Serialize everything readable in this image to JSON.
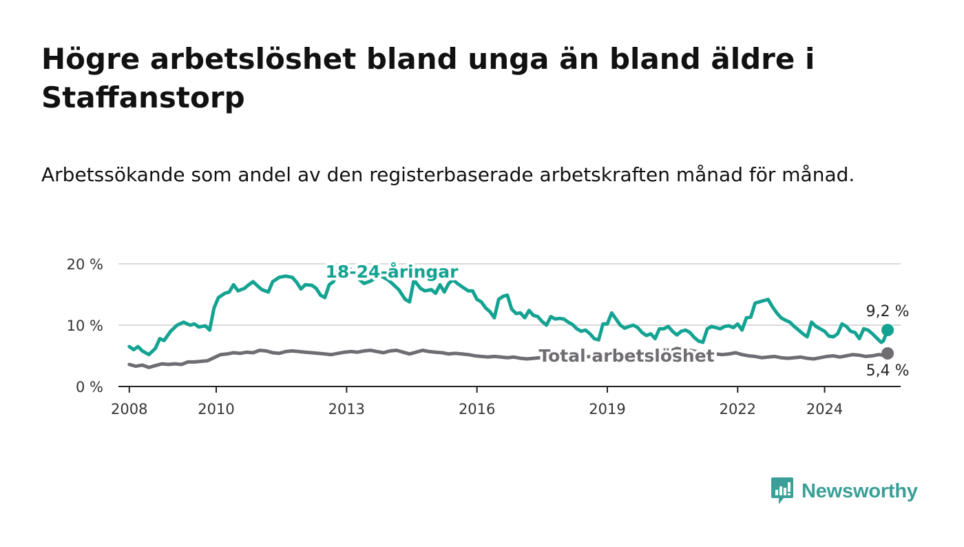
{
  "title": "Högre arbetslöshet bland unga än bland äldre i Staffanstorp",
  "subtitle": "Arbetssökande som andel av den registerbaserade arbetskraften månad för månad.",
  "brand": {
    "name": "Newsworthy",
    "color": "#3aa097"
  },
  "chart_data": {
    "type": "line",
    "title": "Högre arbetslöshet bland unga än bland äldre i Staffanstorp",
    "subtitle": "Arbetssökande som andel av den registerbaserade arbetskraften månad för månad.",
    "xlabel": "",
    "ylabel": "",
    "xlim": [
      2007.75,
      2025.75
    ],
    "ylim": [
      0,
      20
    ],
    "grid": true,
    "x_ticks": [
      2008,
      2010,
      2013,
      2016,
      2019,
      2022,
      2024
    ],
    "x_tick_labels": [
      "2008",
      "2010",
      "2013",
      "2016",
      "2019",
      "2022",
      "2024"
    ],
    "y_ticks": [
      0,
      10,
      20
    ],
    "y_tick_labels": [
      "0 %",
      "10 %",
      "20 %"
    ],
    "series": [
      {
        "name": "18-24-åringar",
        "label": "18-24-åringar",
        "color": "#14a392",
        "end_label": "9,2 %",
        "points": [
          [
            2008.0,
            6.5
          ],
          [
            2008.1,
            6.0
          ],
          [
            2008.2,
            6.5
          ],
          [
            2008.3,
            5.8
          ],
          [
            2008.45,
            5.2
          ],
          [
            2008.6,
            6.2
          ],
          [
            2008.7,
            7.8
          ],
          [
            2008.8,
            7.5
          ],
          [
            2008.95,
            9.0
          ],
          [
            2009.1,
            10.0
          ],
          [
            2009.25,
            10.5
          ],
          [
            2009.4,
            10.0
          ],
          [
            2009.5,
            10.2
          ],
          [
            2009.6,
            9.7
          ],
          [
            2009.75,
            9.9
          ],
          [
            2009.85,
            9.2
          ],
          [
            2009.95,
            12.8
          ],
          [
            2010.05,
            14.5
          ],
          [
            2010.2,
            15.2
          ],
          [
            2010.3,
            15.4
          ],
          [
            2010.4,
            16.6
          ],
          [
            2010.5,
            15.6
          ],
          [
            2010.65,
            16.0
          ],
          [
            2010.75,
            16.6
          ],
          [
            2010.85,
            17.1
          ],
          [
            2010.95,
            16.4
          ],
          [
            2011.05,
            15.8
          ],
          [
            2011.2,
            15.4
          ],
          [
            2011.3,
            17.1
          ],
          [
            2011.45,
            17.8
          ],
          [
            2011.6,
            18.0
          ],
          [
            2011.75,
            17.8
          ],
          [
            2011.85,
            17.0
          ],
          [
            2011.95,
            15.9
          ],
          [
            2012.05,
            16.6
          ],
          [
            2012.2,
            16.5
          ],
          [
            2012.3,
            16.0
          ],
          [
            2012.4,
            14.9
          ],
          [
            2012.5,
            14.5
          ],
          [
            2012.6,
            16.6
          ],
          [
            2012.7,
            17.1
          ],
          [
            2012.8,
            19.0
          ],
          [
            2012.9,
            19.6
          ],
          [
            2013.05,
            19.4
          ],
          [
            2013.2,
            18.2
          ],
          [
            2013.3,
            17.4
          ],
          [
            2013.4,
            16.8
          ],
          [
            2013.55,
            17.2
          ],
          [
            2013.65,
            17.6
          ],
          [
            2013.8,
            18.0
          ],
          [
            2013.95,
            17.4
          ],
          [
            2014.05,
            16.8
          ],
          [
            2014.2,
            15.8
          ],
          [
            2014.35,
            14.2
          ],
          [
            2014.45,
            13.8
          ],
          [
            2014.55,
            17.4
          ],
          [
            2014.7,
            16.0
          ],
          [
            2014.8,
            15.6
          ],
          [
            2014.95,
            15.8
          ],
          [
            2015.05,
            15.2
          ],
          [
            2015.15,
            16.6
          ],
          [
            2015.25,
            15.4
          ],
          [
            2015.35,
            16.8
          ],
          [
            2015.45,
            17.4
          ],
          [
            2015.55,
            16.8
          ],
          [
            2015.65,
            16.3
          ],
          [
            2015.8,
            15.6
          ],
          [
            2015.9,
            15.6
          ],
          [
            2016.0,
            14.2
          ],
          [
            2016.1,
            13.8
          ],
          [
            2016.2,
            12.8
          ],
          [
            2016.3,
            12.2
          ],
          [
            2016.4,
            11.2
          ],
          [
            2016.5,
            14.2
          ],
          [
            2016.6,
            14.7
          ],
          [
            2016.7,
            14.9
          ],
          [
            2016.8,
            12.6
          ],
          [
            2016.9,
            11.9
          ],
          [
            2017.0,
            12.0
          ],
          [
            2017.1,
            11.2
          ],
          [
            2017.2,
            12.4
          ],
          [
            2017.3,
            11.6
          ],
          [
            2017.4,
            11.4
          ],
          [
            2017.5,
            10.6
          ],
          [
            2017.6,
            10.0
          ],
          [
            2017.7,
            11.4
          ],
          [
            2017.8,
            11.0
          ],
          [
            2017.9,
            11.1
          ],
          [
            2018.0,
            11.0
          ],
          [
            2018.1,
            10.5
          ],
          [
            2018.2,
            10.1
          ],
          [
            2018.3,
            9.4
          ],
          [
            2018.4,
            9.0
          ],
          [
            2018.5,
            9.2
          ],
          [
            2018.6,
            8.6
          ],
          [
            2018.7,
            7.8
          ],
          [
            2018.8,
            7.6
          ],
          [
            2018.9,
            10.2
          ],
          [
            2019.0,
            10.2
          ],
          [
            2019.1,
            12.0
          ],
          [
            2019.2,
            11.0
          ],
          [
            2019.3,
            10.0
          ],
          [
            2019.4,
            9.5
          ],
          [
            2019.5,
            9.8
          ],
          [
            2019.6,
            10.0
          ],
          [
            2019.7,
            9.6
          ],
          [
            2019.8,
            8.8
          ],
          [
            2019.9,
            8.3
          ],
          [
            2020.0,
            8.6
          ],
          [
            2020.1,
            7.8
          ],
          [
            2020.2,
            9.4
          ],
          [
            2020.3,
            9.4
          ],
          [
            2020.4,
            9.8
          ],
          [
            2020.5,
            9.0
          ],
          [
            2020.6,
            8.4
          ],
          [
            2020.7,
            9.0
          ],
          [
            2020.8,
            9.2
          ],
          [
            2020.9,
            8.8
          ],
          [
            2021.0,
            8.0
          ],
          [
            2021.1,
            7.4
          ],
          [
            2021.2,
            7.2
          ],
          [
            2021.3,
            9.4
          ],
          [
            2021.4,
            9.8
          ],
          [
            2021.5,
            9.6
          ],
          [
            2021.6,
            9.4
          ],
          [
            2021.7,
            9.8
          ],
          [
            2021.8,
            9.9
          ],
          [
            2021.9,
            9.6
          ],
          [
            2022.0,
            10.2
          ],
          [
            2022.1,
            9.2
          ],
          [
            2022.2,
            11.2
          ],
          [
            2022.3,
            11.3
          ],
          [
            2022.4,
            13.6
          ],
          [
            2022.5,
            13.8
          ],
          [
            2022.6,
            14.0
          ],
          [
            2022.7,
            14.2
          ],
          [
            2022.8,
            13.0
          ],
          [
            2022.9,
            12.0
          ],
          [
            2023.0,
            11.2
          ],
          [
            2023.1,
            10.8
          ],
          [
            2023.2,
            10.5
          ],
          [
            2023.3,
            9.8
          ],
          [
            2023.4,
            9.2
          ],
          [
            2023.5,
            8.6
          ],
          [
            2023.6,
            8.1
          ],
          [
            2023.7,
            10.5
          ],
          [
            2023.8,
            9.8
          ],
          [
            2023.9,
            9.4
          ],
          [
            2024.0,
            9.0
          ],
          [
            2024.1,
            8.2
          ],
          [
            2024.2,
            8.1
          ],
          [
            2024.3,
            8.6
          ],
          [
            2024.4,
            10.2
          ],
          [
            2024.5,
            9.8
          ],
          [
            2024.6,
            9.0
          ],
          [
            2024.7,
            8.8
          ],
          [
            2024.8,
            7.8
          ],
          [
            2024.9,
            9.4
          ],
          [
            2025.0,
            9.2
          ],
          [
            2025.1,
            8.6
          ],
          [
            2025.2,
            7.9
          ],
          [
            2025.3,
            7.2
          ],
          [
            2025.35,
            7.4
          ],
          [
            2025.45,
            9.2
          ]
        ]
      },
      {
        "name": "Total arbetslöshet",
        "label": "Total arbetslöshet",
        "color": "#6f6c72",
        "end_label": "5,4 %",
        "points": [
          [
            2008.0,
            3.6
          ],
          [
            2008.15,
            3.3
          ],
          [
            2008.3,
            3.5
          ],
          [
            2008.45,
            3.1
          ],
          [
            2008.6,
            3.4
          ],
          [
            2008.75,
            3.7
          ],
          [
            2008.9,
            3.6
          ],
          [
            2009.05,
            3.7
          ],
          [
            2009.2,
            3.6
          ],
          [
            2009.35,
            4.0
          ],
          [
            2009.5,
            4.0
          ],
          [
            2009.65,
            4.1
          ],
          [
            2009.8,
            4.2
          ],
          [
            2009.95,
            4.7
          ],
          [
            2010.1,
            5.2
          ],
          [
            2010.25,
            5.3
          ],
          [
            2010.4,
            5.5
          ],
          [
            2010.55,
            5.4
          ],
          [
            2010.7,
            5.6
          ],
          [
            2010.85,
            5.5
          ],
          [
            2011.0,
            5.9
          ],
          [
            2011.15,
            5.8
          ],
          [
            2011.3,
            5.5
          ],
          [
            2011.45,
            5.4
          ],
          [
            2011.6,
            5.7
          ],
          [
            2011.75,
            5.8
          ],
          [
            2011.9,
            5.7
          ],
          [
            2012.05,
            5.6
          ],
          [
            2012.2,
            5.5
          ],
          [
            2012.35,
            5.4
          ],
          [
            2012.5,
            5.3
          ],
          [
            2012.65,
            5.2
          ],
          [
            2012.8,
            5.4
          ],
          [
            2012.95,
            5.6
          ],
          [
            2013.1,
            5.7
          ],
          [
            2013.25,
            5.6
          ],
          [
            2013.4,
            5.8
          ],
          [
            2013.55,
            5.9
          ],
          [
            2013.7,
            5.7
          ],
          [
            2013.85,
            5.5
          ],
          [
            2014.0,
            5.8
          ],
          [
            2014.15,
            5.9
          ],
          [
            2014.3,
            5.6
          ],
          [
            2014.45,
            5.3
          ],
          [
            2014.6,
            5.6
          ],
          [
            2014.75,
            5.9
          ],
          [
            2014.9,
            5.7
          ],
          [
            2015.05,
            5.6
          ],
          [
            2015.2,
            5.5
          ],
          [
            2015.35,
            5.3
          ],
          [
            2015.5,
            5.4
          ],
          [
            2015.65,
            5.3
          ],
          [
            2015.8,
            5.2
          ],
          [
            2015.95,
            5.0
          ],
          [
            2016.1,
            4.9
          ],
          [
            2016.25,
            4.8
          ],
          [
            2016.4,
            4.9
          ],
          [
            2016.55,
            4.8
          ],
          [
            2016.7,
            4.7
          ],
          [
            2016.85,
            4.8
          ],
          [
            2017.0,
            4.6
          ],
          [
            2017.15,
            4.5
          ],
          [
            2017.3,
            4.6
          ],
          [
            2017.45,
            4.7
          ],
          [
            2017.6,
            4.7
          ],
          [
            2017.75,
            4.8
          ],
          [
            2017.9,
            4.7
          ],
          [
            2018.05,
            4.9
          ],
          [
            2018.2,
            4.8
          ],
          [
            2018.35,
            4.7
          ],
          [
            2018.5,
            4.9
          ],
          [
            2018.65,
            4.8
          ],
          [
            2018.8,
            4.7
          ],
          [
            2018.95,
            4.8
          ],
          [
            2019.1,
            4.9
          ],
          [
            2019.25,
            4.8
          ],
          [
            2019.4,
            4.9
          ],
          [
            2019.55,
            5.0
          ],
          [
            2019.7,
            4.9
          ],
          [
            2019.85,
            5.1
          ],
          [
            2020.0,
            5.2
          ],
          [
            2020.15,
            5.3
          ],
          [
            2020.3,
            5.5
          ],
          [
            2020.45,
            5.8
          ],
          [
            2020.6,
            6.2
          ],
          [
            2020.75,
            6.0
          ],
          [
            2020.9,
            5.9
          ],
          [
            2021.05,
            5.7
          ],
          [
            2021.2,
            5.6
          ],
          [
            2021.35,
            5.4
          ],
          [
            2021.5,
            5.3
          ],
          [
            2021.65,
            5.2
          ],
          [
            2021.8,
            5.3
          ],
          [
            2021.95,
            5.5
          ],
          [
            2022.1,
            5.2
          ],
          [
            2022.25,
            5.0
          ],
          [
            2022.4,
            4.9
          ],
          [
            2022.55,
            4.7
          ],
          [
            2022.7,
            4.8
          ],
          [
            2022.85,
            4.9
          ],
          [
            2023.0,
            4.7
          ],
          [
            2023.15,
            4.6
          ],
          [
            2023.3,
            4.7
          ],
          [
            2023.45,
            4.8
          ],
          [
            2023.6,
            4.6
          ],
          [
            2023.75,
            4.5
          ],
          [
            2023.9,
            4.7
          ],
          [
            2024.05,
            4.9
          ],
          [
            2024.2,
            5.0
          ],
          [
            2024.35,
            4.8
          ],
          [
            2024.5,
            5.0
          ],
          [
            2024.65,
            5.2
          ],
          [
            2024.8,
            5.1
          ],
          [
            2024.95,
            4.9
          ],
          [
            2025.1,
            5.0
          ],
          [
            2025.25,
            5.2
          ],
          [
            2025.35,
            5.1
          ],
          [
            2025.45,
            5.4
          ]
        ]
      }
    ]
  }
}
